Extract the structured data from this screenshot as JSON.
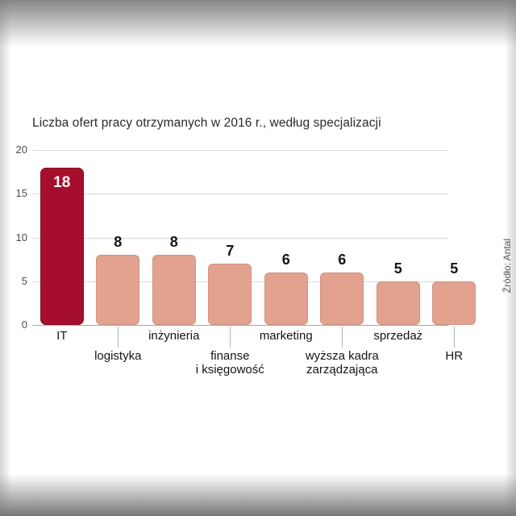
{
  "chart_data": {
    "type": "bar",
    "title": "Liczba ofert pracy otrzymanych w 2016 r., według specjalizacji",
    "source": "Źródło: Antal",
    "categories": [
      {
        "lines": [
          "IT"
        ],
        "row": 0
      },
      {
        "lines": [
          "logistyka"
        ],
        "row": 1
      },
      {
        "lines": [
          "inżynieria"
        ],
        "row": 0
      },
      {
        "lines": [
          "finanse",
          "i księgowość"
        ],
        "row": 1
      },
      {
        "lines": [
          "marketing"
        ],
        "row": 0
      },
      {
        "lines": [
          "wyższa kadra",
          "zarządzająca"
        ],
        "row": 1
      },
      {
        "lines": [
          "sprzedaż"
        ],
        "row": 0
      },
      {
        "lines": [
          "HR"
        ],
        "row": 1
      }
    ],
    "values": [
      18,
      8,
      8,
      7,
      6,
      6,
      5,
      5
    ],
    "highlight_index": 0,
    "ylim": [
      0,
      20
    ],
    "yticks": [
      0,
      5,
      10,
      15,
      20
    ],
    "grid": true,
    "legend": false,
    "colors": {
      "highlight_bar": "#a50f2d",
      "default_bar": "#e2a28f",
      "value_inside": "#ffffff",
      "value_outside": "#141414"
    }
  }
}
